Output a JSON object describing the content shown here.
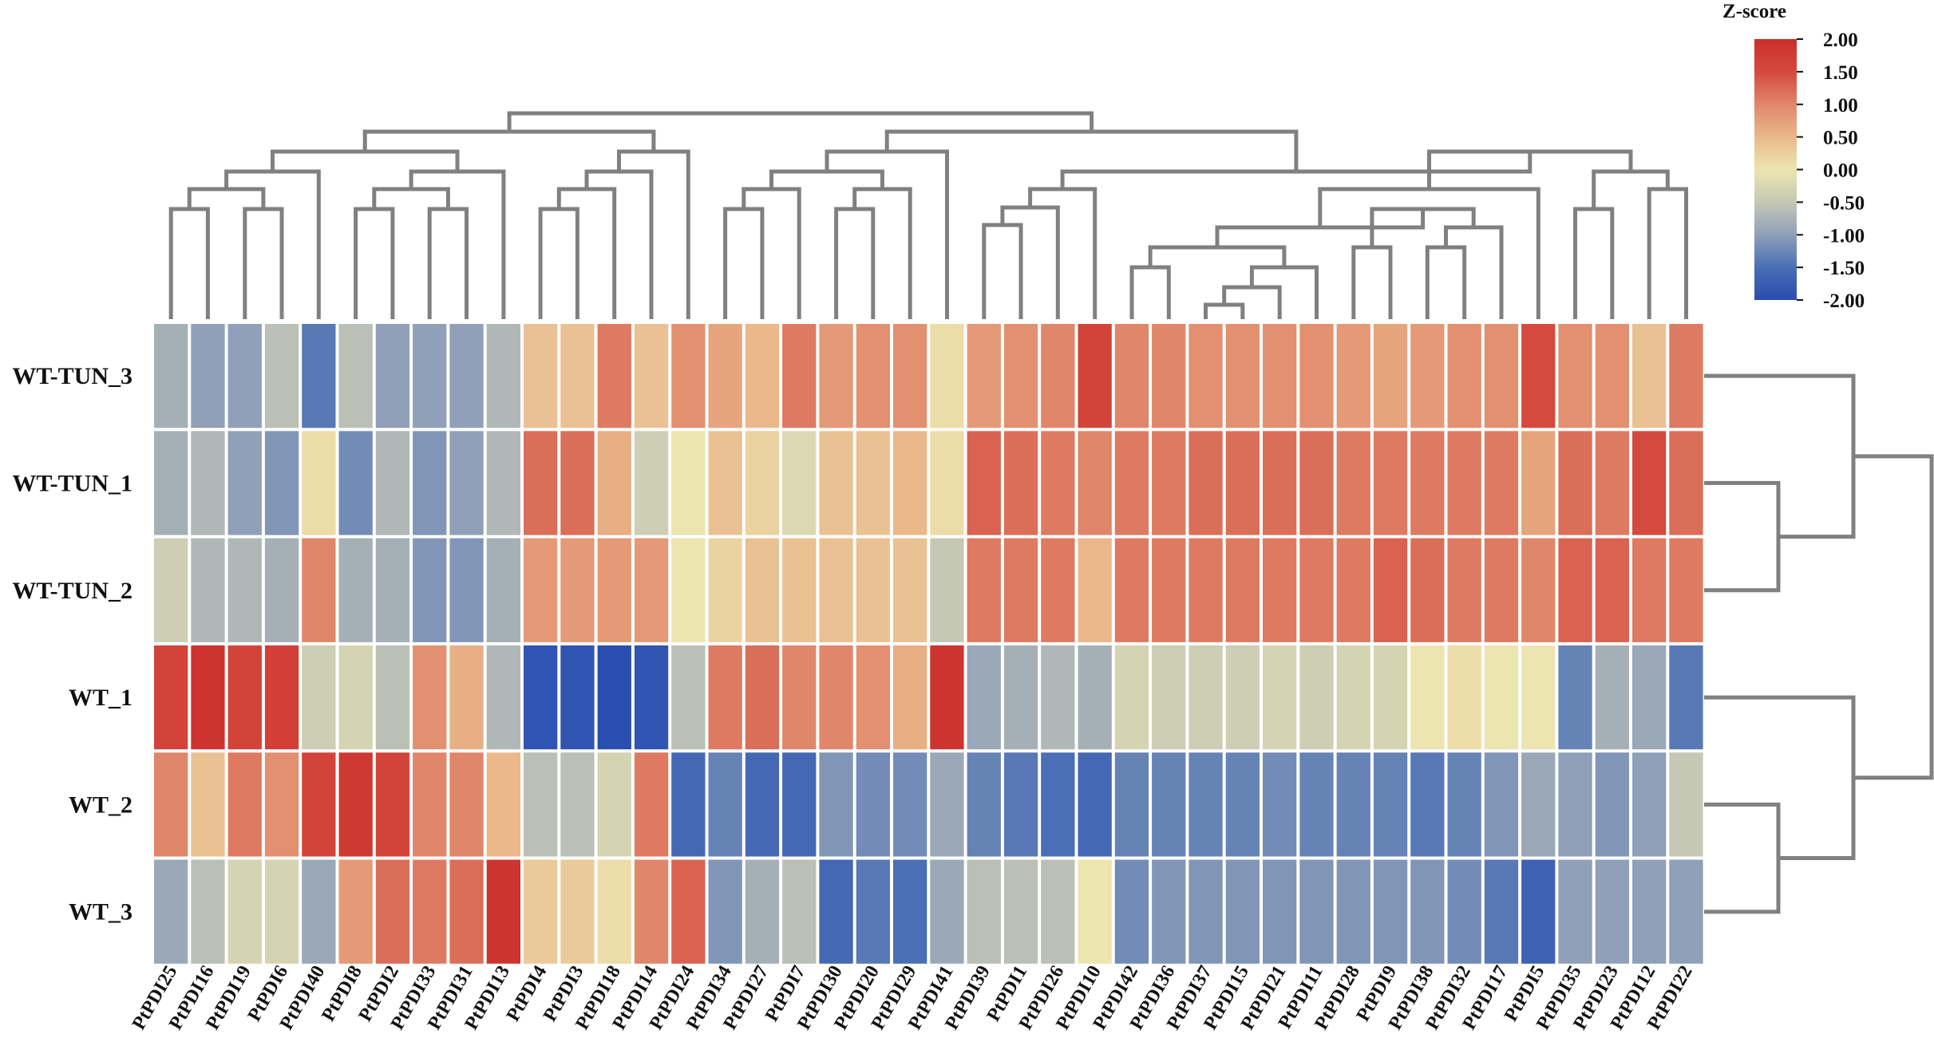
{
  "chart_data": {
    "type": "heatmap",
    "title": "",
    "legend_title": "Z-score",
    "legend_ticks": [
      "2.00",
      "1.50",
      "1.00",
      "0.50",
      "0.00",
      "-0.50",
      "-1.00",
      "-1.50",
      "-2.00"
    ],
    "zlim": [
      -2,
      2
    ],
    "colorscale": [
      "#2a4db0",
      "#4a6fb5",
      "#8fa0b8",
      "#c5c8b4",
      "#ece5b0",
      "#eab88a",
      "#e0866a",
      "#d44a3e",
      "#cc2e2b"
    ],
    "columns": [
      "PtPDI25",
      "PtPDI16",
      "PtPDI19",
      "PtPDI6",
      "PtPDI40",
      "PtPDI8",
      "PtPDI2",
      "PtPDI33",
      "PtPDI31",
      "PtPDI13",
      "PtPDI4",
      "PtPDI3",
      "PtPDI18",
      "PtPDI14",
      "PtPDI24",
      "PtPDI34",
      "PtPDI27",
      "PtPDI7",
      "PtPDI30",
      "PtPDI20",
      "PtPDI29",
      "PtPDI41",
      "PtPDI39",
      "PtPDI1",
      "PtPDI26",
      "PtPDI10",
      "PtPDI42",
      "PtPDI36",
      "PtPDI37",
      "PtPDI15",
      "PtPDI21",
      "PtPDI11",
      "PtPDI28",
      "PtPDI9",
      "PtPDI38",
      "PtPDI32",
      "PtPDI17",
      "PtPDI5",
      "PtPDI35",
      "PtPDI23",
      "PtPDI12",
      "PtPDI22"
    ],
    "rows": [
      "WT-TUN_3",
      "WT-TUN_1",
      "WT-TUN_2",
      "WT_1",
      "WT_2",
      "WT_3"
    ],
    "values": [
      [
        -0.8,
        -1.0,
        -1.0,
        -0.6,
        -1.4,
        -0.6,
        -1.0,
        -1.0,
        -1.0,
        -0.7,
        0.4,
        0.4,
        1.1,
        0.4,
        0.9,
        0.7,
        0.5,
        1.1,
        0.8,
        0.9,
        0.9,
        0.1,
        0.8,
        0.9,
        1.0,
        1.6,
        1.0,
        1.0,
        0.9,
        0.9,
        0.9,
        0.9,
        0.8,
        0.7,
        0.8,
        0.9,
        0.9,
        1.5,
        0.9,
        0.9,
        0.4,
        1.1
      ],
      [
        -0.8,
        -0.7,
        -1.0,
        -1.1,
        0.1,
        -1.2,
        -0.7,
        -1.1,
        -1.0,
        -0.7,
        1.2,
        1.2,
        0.6,
        -0.4,
        0.0,
        0.4,
        0.2,
        -0.2,
        0.4,
        0.4,
        0.5,
        0.1,
        1.3,
        1.2,
        1.1,
        1.0,
        1.1,
        1.1,
        1.2,
        1.2,
        1.2,
        1.2,
        1.1,
        1.1,
        1.1,
        1.1,
        1.1,
        0.7,
        1.2,
        1.1,
        1.5,
        1.2
      ],
      [
        -0.4,
        -0.7,
        -0.7,
        -0.8,
        1.0,
        -0.8,
        -0.8,
        -1.1,
        -1.1,
        -0.8,
        0.8,
        0.8,
        0.8,
        0.8,
        0.0,
        0.2,
        0.4,
        0.4,
        0.4,
        0.4,
        0.4,
        -0.5,
        1.1,
        1.1,
        1.1,
        0.5,
        1.1,
        1.1,
        1.1,
        1.1,
        1.1,
        1.1,
        1.1,
        1.3,
        1.2,
        1.1,
        1.1,
        1.0,
        1.3,
        1.3,
        1.1,
        1.1
      ],
      [
        1.6,
        1.9,
        1.6,
        1.7,
        -0.4,
        -0.3,
        -0.6,
        0.9,
        0.6,
        -0.7,
        -1.9,
        -1.9,
        -2.0,
        -1.9,
        -0.6,
        1.1,
        1.2,
        1.0,
        1.0,
        0.9,
        0.6,
        1.9,
        -0.9,
        -0.8,
        -0.7,
        -0.8,
        -0.3,
        -0.4,
        -0.4,
        -0.4,
        -0.3,
        -0.4,
        -0.3,
        -0.3,
        0.0,
        0.1,
        0.0,
        0.0,
        -1.3,
        -0.8,
        -0.9,
        -1.4
      ],
      [
        1.0,
        0.4,
        1.1,
        0.9,
        1.6,
        1.8,
        1.6,
        1.0,
        1.0,
        0.5,
        -0.6,
        -0.6,
        -0.3,
        1.1,
        -1.6,
        -1.3,
        -1.6,
        -1.6,
        -1.1,
        -1.2,
        -1.2,
        -0.9,
        -1.3,
        -1.4,
        -1.5,
        -1.6,
        -1.3,
        -1.3,
        -1.3,
        -1.3,
        -1.2,
        -1.3,
        -1.3,
        -1.3,
        -1.4,
        -1.3,
        -1.1,
        -0.9,
        -1.0,
        -1.1,
        -1.0,
        -0.5
      ],
      [
        -0.9,
        -0.6,
        -0.3,
        -0.3,
        -0.9,
        0.8,
        1.2,
        1.1,
        1.2,
        1.9,
        0.3,
        0.3,
        0.1,
        1.0,
        1.3,
        -1.1,
        -0.8,
        -0.6,
        -1.6,
        -1.4,
        -1.5,
        -0.9,
        -0.6,
        -0.6,
        -0.6,
        0.0,
        -1.2,
        -1.1,
        -1.1,
        -1.1,
        -1.1,
        -1.1,
        -1.1,
        -1.1,
        -1.1,
        -1.2,
        -1.4,
        -1.7,
        -1.0,
        -1.0,
        -1.0,
        -1.0
      ]
    ]
  }
}
